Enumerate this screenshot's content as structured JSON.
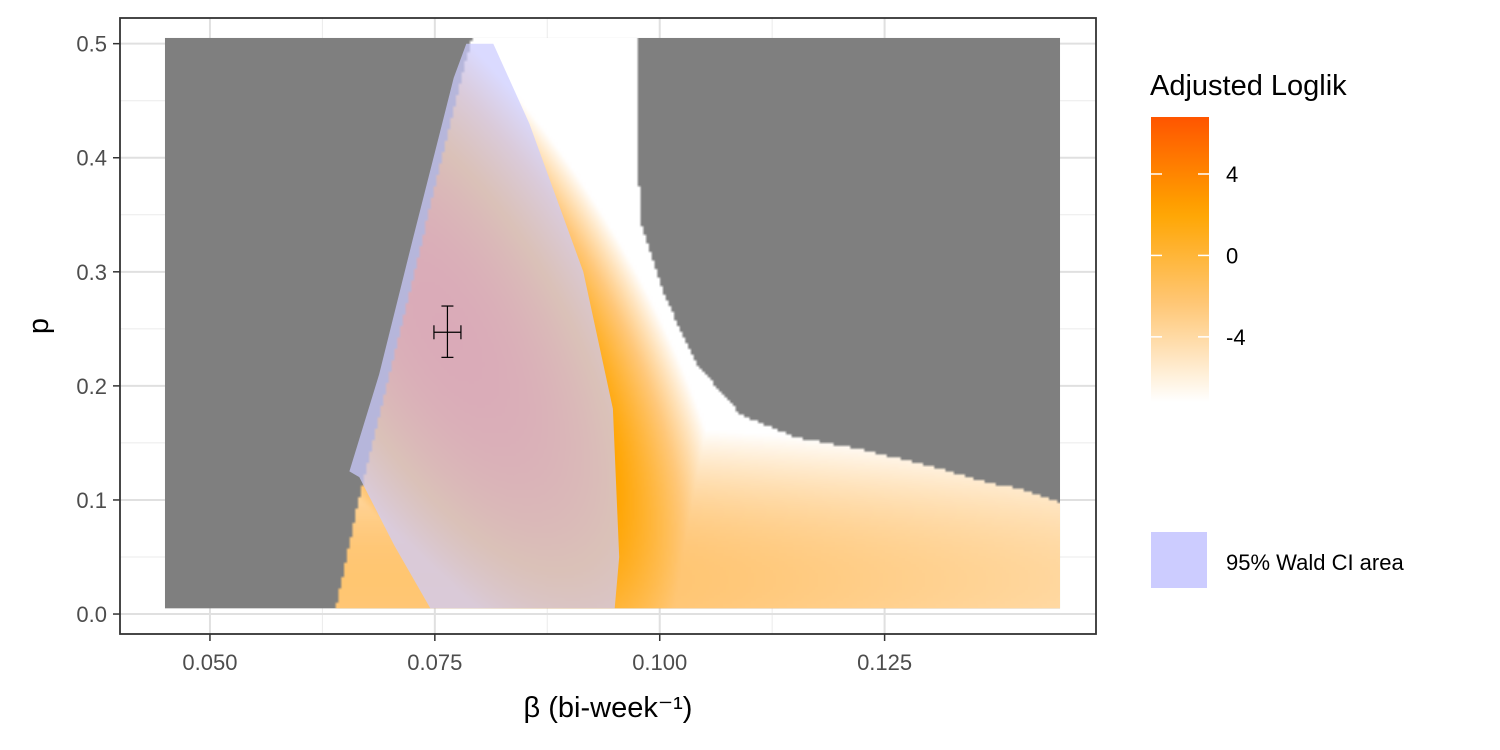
{
  "chart_data": {
    "type": "heatmap",
    "title": "",
    "xlabel": "β (bi-week⁻¹)",
    "ylabel": "p",
    "xlim": [
      0.04,
      0.1485
    ],
    "ylim": [
      -0.0175,
      0.5225
    ],
    "x_ticks": [
      {
        "value": 0.05,
        "label": "0.050"
      },
      {
        "value": 0.075,
        "label": "0.075"
      },
      {
        "value": 0.1,
        "label": "0.100"
      },
      {
        "value": 0.125,
        "label": "0.125"
      }
    ],
    "y_ticks": [
      {
        "value": 0.0,
        "label": "0.0"
      },
      {
        "value": 0.1,
        "label": "0.1"
      },
      {
        "value": 0.2,
        "label": "0.2"
      },
      {
        "value": 0.3,
        "label": "0.3"
      },
      {
        "value": 0.4,
        "label": "0.4"
      },
      {
        "value": 0.5,
        "label": "0.5"
      }
    ],
    "grid": true,
    "grid_range": {
      "x": [
        0.045,
        0.1445
      ],
      "y": [
        0.005,
        0.505
      ]
    },
    "na_color": "#7f7f7f",
    "colorscale": {
      "name": "Adjusted Loglik",
      "colors": [
        "#ffffff",
        "#ffc87a",
        "#ffa500",
        "#ff5500"
      ],
      "breaks": [
        {
          "value": 4,
          "label": "4"
        },
        {
          "value": 0,
          "label": "0"
        },
        {
          "value": -4,
          "label": "-4"
        }
      ],
      "range": [
        -7.2,
        6.8
      ]
    },
    "estimate": {
      "beta": 0.0764,
      "p": 0.247,
      "beta_ci": [
        0.0749,
        0.0779
      ],
      "p_ci": [
        0.225,
        0.27
      ]
    },
    "wald_region": {
      "label": "95% Wald CI area",
      "color": "#ccccff",
      "boundary": [
        [
          0.0655,
          0.125
        ],
        [
          0.0688,
          0.21
        ],
        [
          0.0726,
          0.33
        ],
        [
          0.0755,
          0.42
        ],
        [
          0.0771,
          0.47
        ],
        [
          0.0785,
          0.5
        ],
        [
          0.0815,
          0.5
        ],
        [
          0.0855,
          0.43
        ],
        [
          0.0915,
          0.3
        ],
        [
          0.0948,
          0.18
        ],
        [
          0.0955,
          0.05
        ],
        [
          0.095,
          0.005
        ],
        [
          0.0745,
          0.005
        ],
        [
          0.0705,
          0.06
        ],
        [
          0.0666,
          0.12
        ]
      ]
    },
    "valid_region": {
      "left_edge": [
        [
          0.064,
          0.005
        ],
        [
          0.0665,
          0.1
        ],
        [
          0.0712,
          0.25
        ],
        [
          0.0764,
          0.42
        ],
        [
          0.0791,
          0.505
        ]
      ],
      "right_edge": [
        [
          0.0956,
          0.005
        ],
        [
          0.096,
          0.2
        ],
        [
          0.0965,
          0.3
        ],
        [
          0.097,
          0.4
        ],
        [
          0.0985,
          0.505
        ]
      ],
      "right_ridge": [
        [
          0.0975,
          0.5
        ],
        [
          0.0975,
          0.4
        ],
        [
          0.098,
          0.34
        ],
        [
          0.1005,
          0.28
        ],
        [
          0.104,
          0.22
        ],
        [
          0.109,
          0.175
        ],
        [
          0.115,
          0.155
        ],
        [
          0.122,
          0.145
        ],
        [
          0.13,
          0.13
        ],
        [
          0.1365,
          0.115
        ],
        [
          0.14,
          0.11
        ],
        [
          0.1445,
          0.098
        ]
      ]
    }
  }
}
